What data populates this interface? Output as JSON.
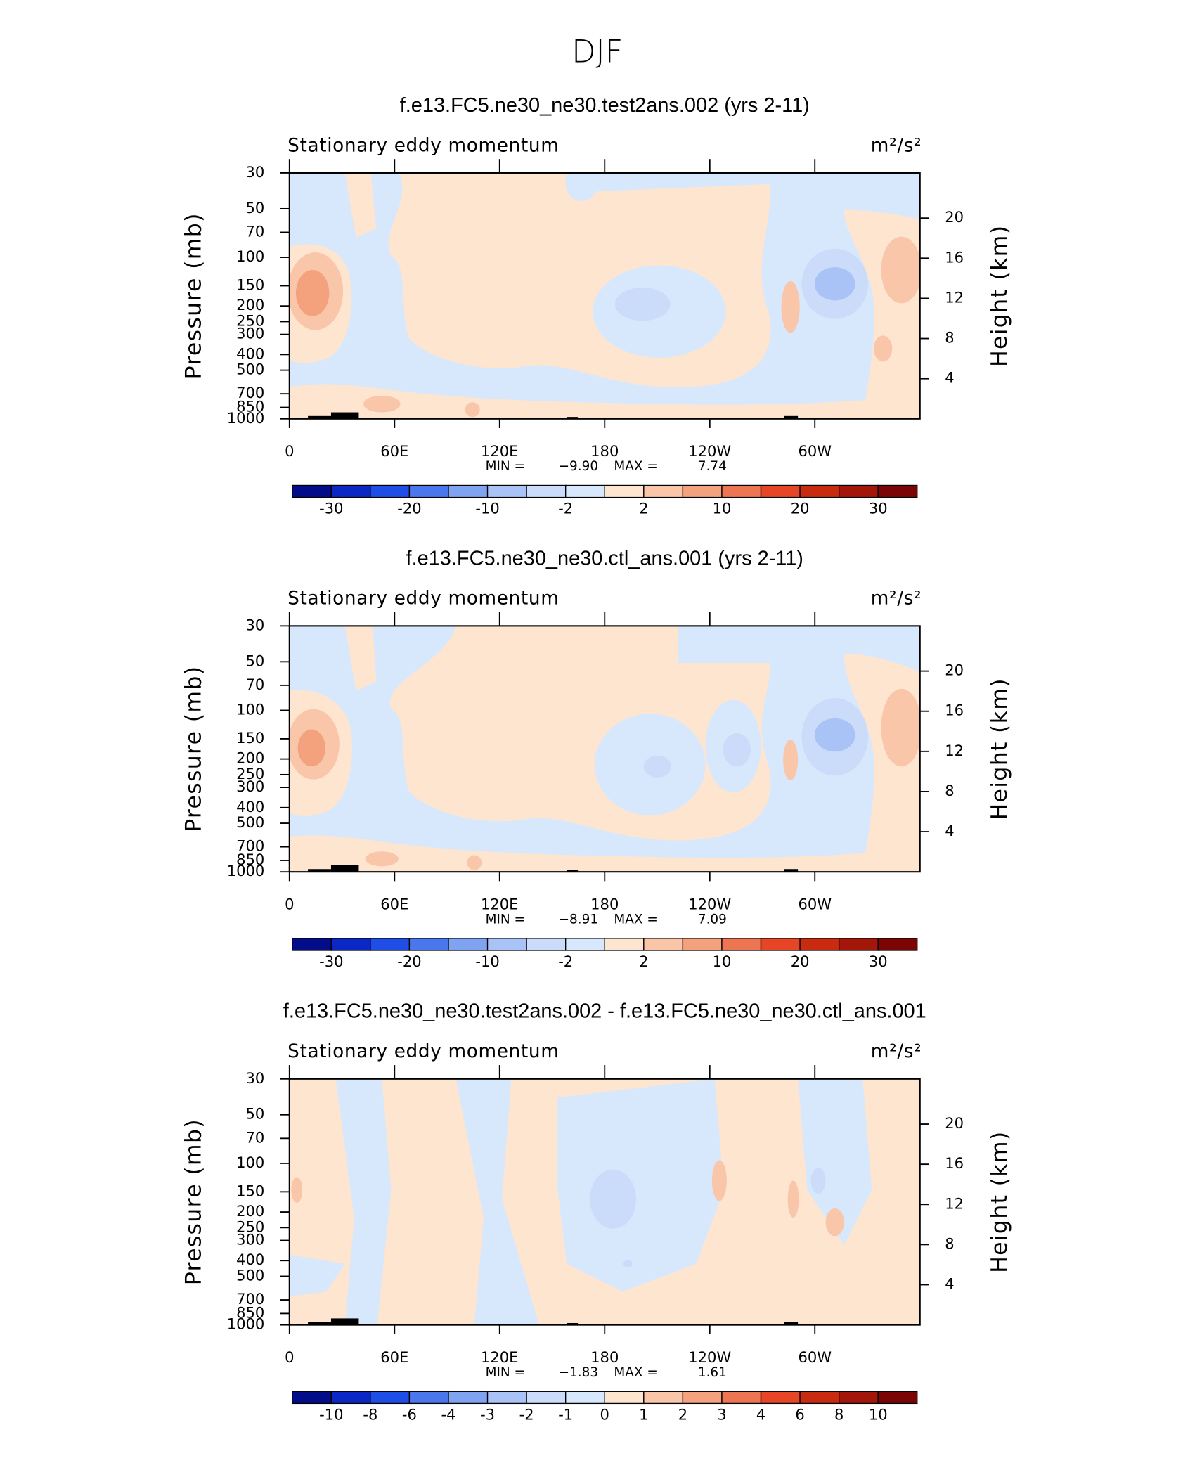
{
  "title": "DJF",
  "chart_data": [
    {
      "type": "contour",
      "title": "f.e13.FC5.ne30_ne30.test2ans.002 (yrs 2-11)",
      "subtitle": "Stationary eddy momentum",
      "units": "m²/s²",
      "ylabel": "Pressure (mb)",
      "y2label": "Height (km)",
      "xlim": [
        0,
        360
      ],
      "xticks": [
        0,
        {
          "value": 60,
          "label": "60E"
        },
        {
          "value": 120,
          "label": "120E"
        },
        180,
        {
          "value": 240,
          "label": "120W"
        },
        {
          "value": 300,
          "label": "60W"
        }
      ],
      "ylim": [
        1000,
        30
      ],
      "log": true,
      "yticks": [
        30,
        50,
        70,
        100,
        150,
        200,
        250,
        300,
        400,
        500,
        700,
        850,
        1000
      ],
      "y2lim": [
        0,
        24.5
      ],
      "y2ticks": [
        4,
        8,
        12,
        16,
        20
      ],
      "stats": [
        {
          "name": "MIN =",
          "value": -9.9,
          "label": "−9.90"
        },
        {
          "name": "MAX =",
          "value": 7.74,
          "label": "7.74"
        }
      ],
      "colorbar": {
        "colors": [
          "#030d8a",
          "#0b28c4",
          "#1f4ee6",
          "#4a78ec",
          "#7fa2f1",
          "#aac3f6",
          "#cadcfa",
          "#d8e8fc",
          "#fde5d0",
          "#f9c6aa",
          "#f4a17d",
          "#ee7551",
          "#e64625",
          "#c92b10",
          "#a3160a",
          "#7b0505"
        ],
        "levels": [
          -30,
          null,
          -20,
          null,
          -10,
          null,
          -2,
          null,
          2,
          null,
          10,
          null,
          20,
          null,
          30
        ]
      }
    },
    {
      "type": "contour",
      "title": "f.e13.FC5.ne30_ne30.ctl_ans.001 (yrs 2-11)",
      "subtitle": "Stationary eddy momentum",
      "units": "m²/s²",
      "ylabel": "Pressure (mb)",
      "y2label": "Height (km)",
      "xlim": [
        0,
        360
      ],
      "xticks": [
        0,
        {
          "value": 60,
          "label": "60E"
        },
        {
          "value": 120,
          "label": "120E"
        },
        180,
        {
          "value": 240,
          "label": "120W"
        },
        {
          "value": 300,
          "label": "60W"
        }
      ],
      "ylim": [
        1000,
        30
      ],
      "log": true,
      "yticks": [
        30,
        50,
        70,
        100,
        150,
        200,
        250,
        300,
        400,
        500,
        700,
        850,
        1000
      ],
      "y2lim": [
        0,
        24.5
      ],
      "y2ticks": [
        4,
        8,
        12,
        16,
        20
      ],
      "stats": [
        {
          "name": "MIN =",
          "value": -8.91,
          "label": "−8.91"
        },
        {
          "name": "MAX =",
          "value": 7.09,
          "label": "7.09"
        }
      ],
      "colorbar": {
        "colors": [
          "#030d8a",
          "#0b28c4",
          "#1f4ee6",
          "#4a78ec",
          "#7fa2f1",
          "#aac3f6",
          "#cadcfa",
          "#d8e8fc",
          "#fde5d0",
          "#f9c6aa",
          "#f4a17d",
          "#ee7551",
          "#e64625",
          "#c92b10",
          "#a3160a",
          "#7b0505"
        ],
        "levels": [
          -30,
          null,
          -20,
          null,
          -10,
          null,
          -2,
          null,
          2,
          null,
          10,
          null,
          20,
          null,
          30
        ]
      }
    },
    {
      "type": "contour",
      "title": "f.e13.FC5.ne30_ne30.test2ans.002 - f.e13.FC5.ne30_ne30.ctl_ans.001",
      "subtitle": "Stationary eddy momentum",
      "units": "m²/s²",
      "ylabel": "Pressure (mb)",
      "y2label": "Height (km)",
      "xlim": [
        0,
        360
      ],
      "xticks": [
        0,
        {
          "value": 60,
          "label": "60E"
        },
        {
          "value": 120,
          "label": "120E"
        },
        180,
        {
          "value": 240,
          "label": "120W"
        },
        {
          "value": 300,
          "label": "60W"
        }
      ],
      "ylim": [
        1000,
        30
      ],
      "log": true,
      "yticks": [
        30,
        50,
        70,
        100,
        150,
        200,
        250,
        300,
        400,
        500,
        700,
        850,
        1000
      ],
      "y2lim": [
        0,
        24.5
      ],
      "y2ticks": [
        4,
        8,
        12,
        16,
        20
      ],
      "stats": [
        {
          "name": "MIN =",
          "value": -1.83,
          "label": "−1.83"
        },
        {
          "name": "MAX =",
          "value": 1.61,
          "label": "1.61"
        }
      ],
      "colorbar": {
        "colors": [
          "#030d8a",
          "#0b28c4",
          "#1f4ee6",
          "#4a78ec",
          "#7fa2f1",
          "#aac3f6",
          "#cadcfa",
          "#d8e8fc",
          "#fde5d0",
          "#f9c6aa",
          "#f4a17d",
          "#ee7551",
          "#e64625",
          "#c92b10",
          "#a3160a",
          "#7b0505"
        ],
        "levels": [
          -10,
          -8,
          -6,
          -4,
          -3,
          -2,
          -1,
          0,
          1,
          2,
          3,
          4,
          6,
          8,
          10
        ]
      }
    }
  ]
}
